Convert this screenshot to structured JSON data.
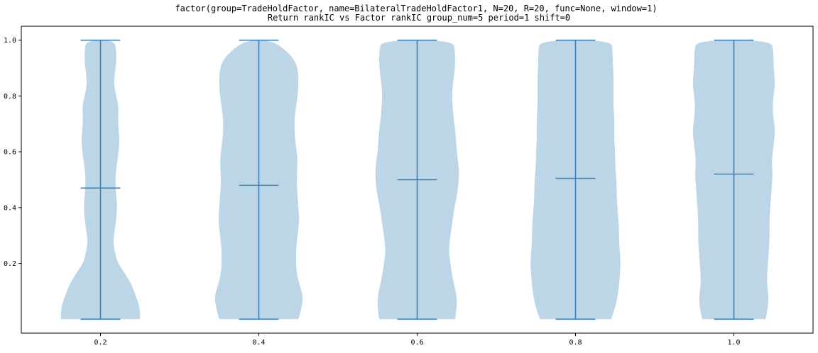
{
  "chart_data": {
    "type": "violin",
    "title": "factor(group=TradeHoldFactor, name=BilateralTradeHoldFactor1, N=20, R=20, func=None, window=1)",
    "subtitle": "Return rankIC vs Factor rankIC group_num=5 period=1 shift=0",
    "xlabel": "",
    "ylabel": "",
    "categories": [
      "0.2",
      "0.4",
      "0.6",
      "0.8",
      "1.0"
    ],
    "x_positions": [
      0.2,
      0.4,
      0.6,
      0.8,
      1.0
    ],
    "xlim": [
      0.1,
      1.1
    ],
    "ylim": [
      -0.05,
      1.05
    ],
    "yticks": [
      0.2,
      0.4,
      0.6,
      0.8,
      1.0
    ],
    "ytick_labels": [
      "0.2",
      "0.4",
      "0.6",
      "0.8",
      "1.0"
    ],
    "show_means": true,
    "grid": false,
    "colors": {
      "body": "#bcd6e8",
      "line": "#3a82bb",
      "axis": "#000000"
    },
    "violins": [
      {
        "x": 0.2,
        "min": 0.0,
        "max": 1.0,
        "mean": 0.47,
        "density_y": [
          0.0,
          0.04,
          0.08,
          0.12,
          0.16,
          0.2,
          0.24,
          0.28,
          0.32,
          0.36,
          0.4,
          0.44,
          0.48,
          0.52,
          0.56,
          0.6,
          0.64,
          0.68,
          0.72,
          0.76,
          0.8,
          0.84,
          0.88,
          0.92,
          0.96,
          1.0
        ],
        "half_width": [
          0.05,
          0.05,
          0.045,
          0.04,
          0.032,
          0.022,
          0.018,
          0.016,
          0.018,
          0.02,
          0.021,
          0.02,
          0.019,
          0.019,
          0.021,
          0.023,
          0.024,
          0.023,
          0.022,
          0.023,
          0.02,
          0.017,
          0.018,
          0.02,
          0.02,
          0.018
        ]
      },
      {
        "x": 0.4,
        "min": 0.0,
        "max": 1.0,
        "mean": 0.48,
        "density_y": [
          0.0,
          0.04,
          0.08,
          0.12,
          0.16,
          0.2,
          0.24,
          0.28,
          0.32,
          0.36,
          0.4,
          0.44,
          0.48,
          0.52,
          0.56,
          0.6,
          0.64,
          0.68,
          0.72,
          0.76,
          0.8,
          0.84,
          0.88,
          0.92,
          0.96,
          1.0
        ],
        "half_width": [
          0.05,
          0.054,
          0.056,
          0.052,
          0.048,
          0.047,
          0.047,
          0.048,
          0.05,
          0.051,
          0.05,
          0.049,
          0.048,
          0.048,
          0.049,
          0.048,
          0.046,
          0.045,
          0.045,
          0.047,
          0.049,
          0.05,
          0.05,
          0.047,
          0.036,
          0.016
        ]
      },
      {
        "x": 0.6,
        "min": 0.0,
        "max": 1.0,
        "mean": 0.5,
        "density_y": [
          0.0,
          0.04,
          0.08,
          0.12,
          0.16,
          0.2,
          0.24,
          0.28,
          0.32,
          0.36,
          0.4,
          0.44,
          0.48,
          0.52,
          0.56,
          0.6,
          0.64,
          0.68,
          0.72,
          0.76,
          0.8,
          0.84,
          0.88,
          0.92,
          0.96,
          1.0
        ],
        "half_width": [
          0.048,
          0.05,
          0.05,
          0.047,
          0.044,
          0.042,
          0.04,
          0.041,
          0.043,
          0.045,
          0.047,
          0.05,
          0.052,
          0.053,
          0.052,
          0.05,
          0.049,
          0.048,
          0.046,
          0.045,
          0.044,
          0.045,
          0.047,
          0.048,
          0.048,
          0.045
        ]
      },
      {
        "x": 0.8,
        "min": 0.0,
        "max": 1.0,
        "mean": 0.505,
        "density_y": [
          0.0,
          0.04,
          0.08,
          0.12,
          0.16,
          0.2,
          0.24,
          0.28,
          0.32,
          0.36,
          0.4,
          0.44,
          0.48,
          0.52,
          0.56,
          0.6,
          0.64,
          0.68,
          0.72,
          0.76,
          0.8,
          0.84,
          0.88,
          0.92,
          0.96,
          1.0
        ],
        "half_width": [
          0.045,
          0.05,
          0.053,
          0.055,
          0.056,
          0.057,
          0.056,
          0.055,
          0.055,
          0.054,
          0.053,
          0.052,
          0.052,
          0.051,
          0.05,
          0.05,
          0.049,
          0.049,
          0.049,
          0.048,
          0.048,
          0.048,
          0.048,
          0.047,
          0.047,
          0.045
        ]
      },
      {
        "x": 1.0,
        "min": 0.0,
        "max": 1.0,
        "mean": 0.52,
        "density_y": [
          0.0,
          0.04,
          0.08,
          0.12,
          0.16,
          0.2,
          0.24,
          0.28,
          0.32,
          0.36,
          0.4,
          0.44,
          0.48,
          0.52,
          0.56,
          0.6,
          0.64,
          0.68,
          0.72,
          0.76,
          0.8,
          0.84,
          0.88,
          0.92,
          0.96,
          1.0
        ],
        "half_width": [
          0.04,
          0.043,
          0.044,
          0.042,
          0.042,
          0.043,
          0.044,
          0.045,
          0.045,
          0.045,
          0.046,
          0.047,
          0.048,
          0.049,
          0.048,
          0.049,
          0.051,
          0.052,
          0.05,
          0.049,
          0.05,
          0.052,
          0.051,
          0.05,
          0.05,
          0.047
        ]
      }
    ]
  }
}
